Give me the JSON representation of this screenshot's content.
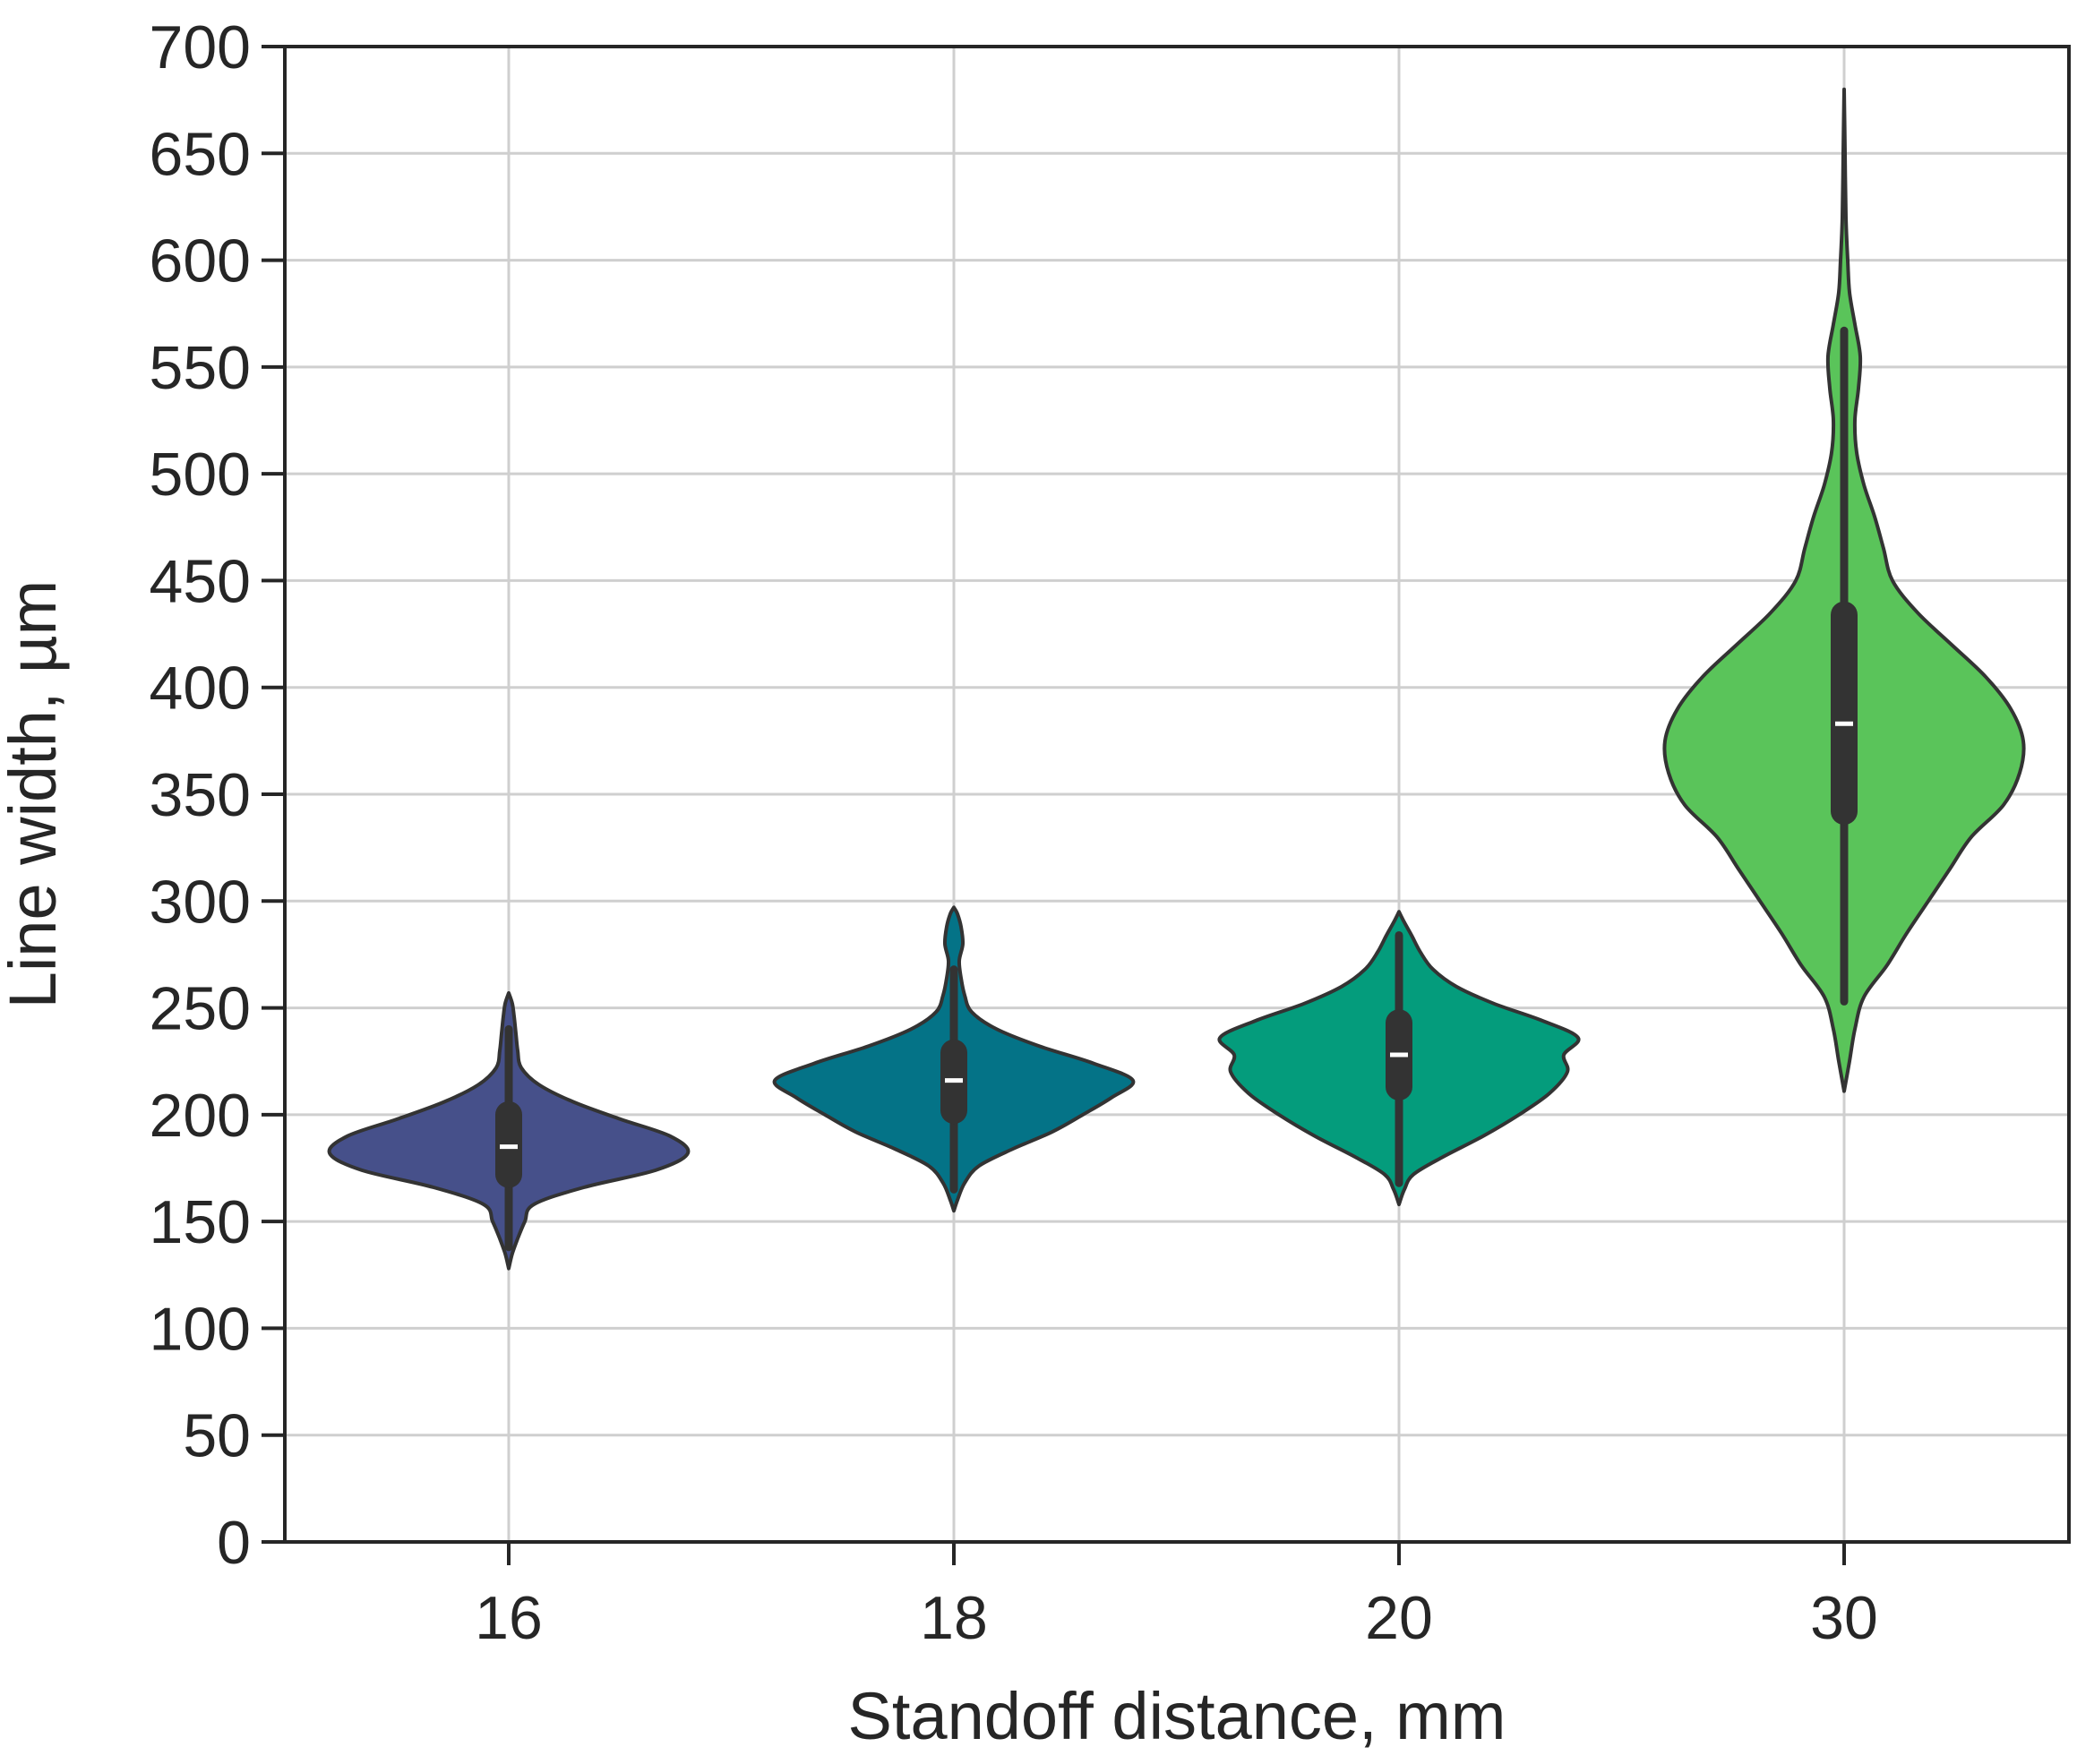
{
  "chart_data": {
    "type": "violin",
    "xlabel": "Standoff distance, mm",
    "ylabel": "Line width, µm",
    "ylim": [
      0,
      700
    ],
    "yticks": [
      "0",
      "50",
      "100",
      "150",
      "200",
      "250",
      "300",
      "350",
      "400",
      "450",
      "500",
      "550",
      "600",
      "650",
      "700"
    ],
    "grid": true,
    "categories": [
      "16",
      "18",
      "20",
      "30"
    ],
    "series": [
      {
        "category": "16",
        "color": "#46508a",
        "min": 128,
        "max": 257,
        "whisker_low": 138,
        "whisker_high": 240,
        "q1": 172,
        "median": 185,
        "q3": 200,
        "density": [
          [
            128,
            0.0
          ],
          [
            135,
            0.02
          ],
          [
            142,
            0.05
          ],
          [
            150,
            0.09
          ],
          [
            158,
            0.14
          ],
          [
            166,
            0.42
          ],
          [
            174,
            0.82
          ],
          [
            182,
            1.0
          ],
          [
            190,
            0.9
          ],
          [
            198,
            0.62
          ],
          [
            206,
            0.36
          ],
          [
            214,
            0.17
          ],
          [
            222,
            0.07
          ],
          [
            230,
            0.05
          ],
          [
            238,
            0.04
          ],
          [
            246,
            0.03
          ],
          [
            252,
            0.02
          ],
          [
            257,
            0.0
          ]
        ]
      },
      {
        "category": "18",
        "color": "#047387",
        "min": 155,
        "max": 297,
        "whisker_low": 165,
        "whisker_high": 268,
        "q1": 202,
        "median": 216,
        "q3": 229,
        "density": [
          [
            155,
            0.0
          ],
          [
            160,
            0.02
          ],
          [
            168,
            0.06
          ],
          [
            176,
            0.14
          ],
          [
            184,
            0.33
          ],
          [
            192,
            0.55
          ],
          [
            200,
            0.72
          ],
          [
            208,
            0.88
          ],
          [
            216,
            1.0
          ],
          [
            224,
            0.78
          ],
          [
            232,
            0.48
          ],
          [
            240,
            0.24
          ],
          [
            248,
            0.1
          ],
          [
            256,
            0.06
          ],
          [
            264,
            0.04
          ],
          [
            272,
            0.03
          ],
          [
            280,
            0.05
          ],
          [
            288,
            0.04
          ],
          [
            294,
            0.02
          ],
          [
            297,
            0.0
          ]
        ]
      },
      {
        "category": "20",
        "color": "#049c7c",
        "min": 158,
        "max": 295,
        "whisker_low": 168,
        "whisker_high": 284,
        "q1": 213,
        "median": 228,
        "q3": 243,
        "density": [
          [
            158,
            0.0
          ],
          [
            165,
            0.03
          ],
          [
            172,
            0.08
          ],
          [
            180,
            0.24
          ],
          [
            190,
            0.47
          ],
          [
            200,
            0.67
          ],
          [
            210,
            0.84
          ],
          [
            220,
            0.94
          ],
          [
            228,
            0.92
          ],
          [
            236,
            1.0
          ],
          [
            244,
            0.8
          ],
          [
            252,
            0.53
          ],
          [
            260,
            0.32
          ],
          [
            268,
            0.19
          ],
          [
            276,
            0.12
          ],
          [
            284,
            0.07
          ],
          [
            290,
            0.03
          ],
          [
            295,
            0.0
          ]
        ]
      },
      {
        "category": "30",
        "color": "#5ac45a",
        "min": 211,
        "max": 680,
        "whisker_low": 253,
        "whisker_high": 567,
        "q1": 342,
        "median": 383,
        "q3": 434,
        "density": [
          [
            211,
            0.0
          ],
          [
            225,
            0.03
          ],
          [
            240,
            0.06
          ],
          [
            255,
            0.11
          ],
          [
            270,
            0.24
          ],
          [
            285,
            0.35
          ],
          [
            300,
            0.47
          ],
          [
            315,
            0.59
          ],
          [
            330,
            0.71
          ],
          [
            345,
            0.89
          ],
          [
            360,
            0.98
          ],
          [
            375,
            1.0
          ],
          [
            390,
            0.93
          ],
          [
            405,
            0.79
          ],
          [
            420,
            0.6
          ],
          [
            435,
            0.41
          ],
          [
            450,
            0.27
          ],
          [
            465,
            0.22
          ],
          [
            480,
            0.17
          ],
          [
            495,
            0.11
          ],
          [
            510,
            0.07
          ],
          [
            525,
            0.06
          ],
          [
            540,
            0.08
          ],
          [
            555,
            0.09
          ],
          [
            570,
            0.06
          ],
          [
            585,
            0.03
          ],
          [
            600,
            0.02
          ],
          [
            620,
            0.01
          ],
          [
            650,
            0.005
          ],
          [
            680,
            0.0
          ]
        ]
      }
    ]
  }
}
